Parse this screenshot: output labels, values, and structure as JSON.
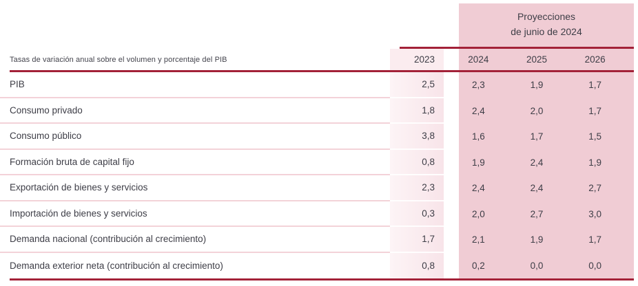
{
  "table": {
    "projection_header": {
      "line1": "Proyecciones",
      "line2": "de junio de 2024"
    },
    "note": "Tasas de variación anual sobre el volumen y porcentaje del PIB",
    "columns": [
      "2023",
      "2024",
      "2025",
      "2026"
    ],
    "rows": [
      {
        "label": "PIB",
        "values": [
          "2,5",
          "2,3",
          "1,9",
          "1,7"
        ]
      },
      {
        "label": "Consumo privado",
        "values": [
          "1,8",
          "2,4",
          "2,0",
          "1,7"
        ]
      },
      {
        "label": "Consumo público",
        "values": [
          "3,8",
          "1,6",
          "1,7",
          "1,5"
        ]
      },
      {
        "label": "Formación bruta de capital fijo",
        "values": [
          "0,8",
          "1,9",
          "2,4",
          "1,9"
        ]
      },
      {
        "label": "Exportación de bienes y servicios",
        "values": [
          "2,3",
          "2,4",
          "2,4",
          "2,7"
        ]
      },
      {
        "label": "Importación de bienes y servicios",
        "values": [
          "0,3",
          "2,0",
          "2,7",
          "3,0"
        ]
      },
      {
        "label": "Demanda nacional (contribución al crecimiento)",
        "values": [
          "1,7",
          "2,1",
          "1,9",
          "1,7"
        ]
      },
      {
        "label": "Demanda exterior neta (contribución al crecimiento)",
        "values": [
          "0,8",
          "0,2",
          "0,0",
          "0,0"
        ]
      }
    ],
    "colors": {
      "accent_rule": "#a32138",
      "projection_block_bg": "#f0ccd4",
      "col_2023_bg": "#fbecef",
      "row_separator": "#f3d2d8",
      "text": "#3d3d46"
    }
  },
  "chart_data": {
    "type": "table",
    "title": "Proyecciones de junio de 2024",
    "note": "Tasas de variación anual sobre el volumen y porcentaje del PIB",
    "columns": [
      "2023",
      "2024",
      "2025",
      "2026"
    ],
    "row_labels": [
      "PIB",
      "Consumo privado",
      "Consumo público",
      "Formación bruta de capital fijo",
      "Exportación de bienes y servicios",
      "Importación de bienes y servicios",
      "Demanda nacional (contribución al crecimiento)",
      "Demanda exterior neta (contribución al crecimiento)"
    ],
    "values": [
      [
        2.5,
        2.3,
        1.9,
        1.7
      ],
      [
        1.8,
        2.4,
        2.0,
        1.7
      ],
      [
        3.8,
        1.6,
        1.7,
        1.5
      ],
      [
        0.8,
        1.9,
        2.4,
        1.9
      ],
      [
        2.3,
        2.4,
        2.4,
        2.7
      ],
      [
        0.3,
        2.0,
        2.7,
        3.0
      ],
      [
        1.7,
        2.1,
        1.9,
        1.7
      ],
      [
        0.8,
        0.2,
        0.0,
        0.0
      ]
    ],
    "highlighted_columns": [
      "2024",
      "2025",
      "2026"
    ],
    "decimal_separator": ","
  }
}
